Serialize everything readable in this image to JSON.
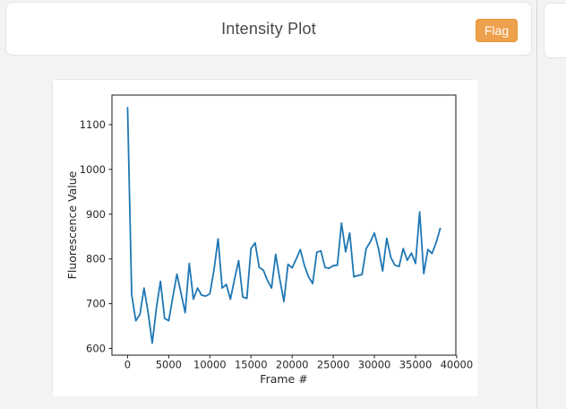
{
  "header": {
    "title": "Intensity Plot",
    "flag_label": "Flag"
  },
  "colors": {
    "page_bg": "#f3f3f4",
    "card_bg": "#ffffff",
    "card_border": "#e4e4e7",
    "flag_bg": "#eea14c",
    "flag_border": "#e69639",
    "flag_text": "#ffffff",
    "line": "#1f77b4",
    "axis": "#1a1a1a",
    "tick_text": "#262626"
  },
  "chart_data": {
    "type": "line",
    "title": "",
    "xlabel": "Frame #",
    "ylabel": "Fluorescence Value",
    "series_name": "fluorescence",
    "grid": false,
    "legend": "none",
    "xlim": [
      -1900,
      39900
    ],
    "ylim": [
      585,
      1166
    ],
    "xticks": [
      0,
      5000,
      10000,
      15000,
      20000,
      25000,
      30000,
      35000,
      40000
    ],
    "yticks": [
      600,
      700,
      800,
      900,
      1000,
      1100
    ],
    "x": [
      0,
      500,
      1000,
      1500,
      2000,
      2500,
      3000,
      3500,
      4000,
      4500,
      5000,
      5500,
      6000,
      6500,
      7000,
      7500,
      8000,
      8500,
      9000,
      9500,
      10000,
      10500,
      11000,
      11500,
      12000,
      12500,
      13000,
      13500,
      14000,
      14500,
      15000,
      15500,
      16000,
      16500,
      17000,
      17500,
      18000,
      18500,
      19000,
      19500,
      20000,
      20500,
      21000,
      21500,
      22000,
      22500,
      23000,
      23500,
      24000,
      24500,
      25000,
      25500,
      26000,
      26500,
      27000,
      27500,
      28000,
      28500,
      29000,
      29500,
      30000,
      30500,
      31000,
      31500,
      32000,
      32500,
      33000,
      33500,
      34000,
      34500,
      35000,
      35500,
      36000,
      36500,
      37000,
      37500,
      38000
    ],
    "y": [
      1138,
      720,
      662,
      676,
      735,
      680,
      612,
      690,
      750,
      667,
      662,
      715,
      766,
      723,
      680,
      790,
      710,
      735,
      719,
      717,
      722,
      775,
      845,
      735,
      743,
      710,
      755,
      796,
      715,
      712,
      823,
      836,
      781,
      775,
      752,
      735,
      810,
      755,
      705,
      788,
      780,
      800,
      821,
      785,
      760,
      745,
      815,
      818,
      781,
      779,
      785,
      786,
      880,
      816,
      858,
      760,
      763,
      765,
      823,
      838,
      858,
      823,
      773,
      846,
      803,
      786,
      783,
      823,
      797,
      813,
      790,
      905,
      767,
      821,
      812,
      836,
      868
    ]
  }
}
